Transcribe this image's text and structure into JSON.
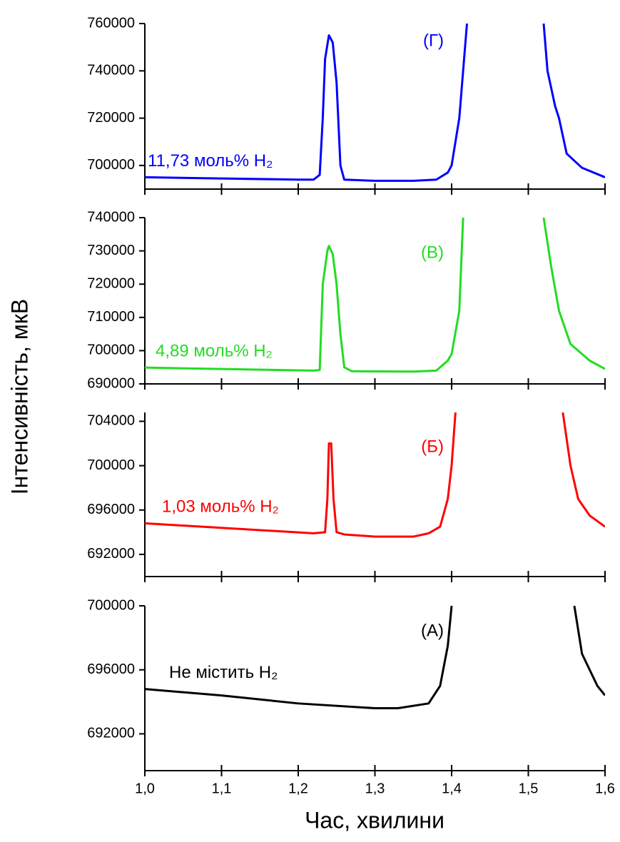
{
  "chart_data": [
    {
      "type": "line",
      "ylabel": "Інтенсивність, мкВ",
      "annotation": "(Г)",
      "x": [
        1.0,
        1.1,
        1.2,
        1.22,
        1.228,
        1.232,
        1.235,
        1.24,
        1.245,
        1.25,
        1.255,
        1.26,
        1.3,
        1.35,
        1.38,
        1.395,
        1.4,
        1.41,
        1.415,
        1.42,
        1.47,
        1.52,
        1.525,
        1.535,
        1.54,
        1.55,
        1.57,
        1.6
      ],
      "series": [
        {
          "name": "11,73 моль% H₂",
          "color": "#0000ff",
          "values": [
            695000,
            694500,
            694000,
            694000,
            696000,
            720000,
            745000,
            755000,
            752000,
            735000,
            700000,
            694000,
            693500,
            693500,
            694000,
            697000,
            700000,
            720000,
            740000,
            760000,
            null,
            760000,
            740000,
            725000,
            720000,
            705000,
            699000,
            695000
          ]
        }
      ],
      "xlim": [
        1.0,
        1.6
      ],
      "ylim": [
        690000,
        760000
      ],
      "yticks": [
        700000,
        720000,
        740000,
        760000
      ]
    },
    {
      "type": "line",
      "annotation": "(В)",
      "x": [
        1.0,
        1.22,
        1.228,
        1.232,
        1.238,
        1.24,
        1.245,
        1.25,
        1.255,
        1.26,
        1.27,
        1.35,
        1.38,
        1.395,
        1.4,
        1.41,
        1.415,
        1.47,
        1.52,
        1.53,
        1.54,
        1.555,
        1.58,
        1.6
      ],
      "series": [
        {
          "name": "4,89 моль% H₂",
          "color": "#22dd22",
          "values": [
            694900,
            694000,
            694200,
            720000,
            730000,
            731500,
            729000,
            720000,
            705000,
            695000,
            693800,
            693700,
            694000,
            697000,
            699000,
            712000,
            740000,
            null,
            740000,
            725000,
            712000,
            702000,
            697000,
            694500
          ]
        }
      ],
      "xlim": [
        1.0,
        1.6
      ],
      "ylim": [
        690000,
        740000
      ],
      "yticks": [
        690000,
        700000,
        710000,
        720000,
        730000,
        740000
      ]
    },
    {
      "type": "line",
      "annotation": "(Б)",
      "x": [
        1.0,
        1.22,
        1.235,
        1.238,
        1.24,
        1.243,
        1.246,
        1.25,
        1.26,
        1.3,
        1.35,
        1.37,
        1.385,
        1.395,
        1.4,
        1.405,
        1.47,
        1.545,
        1.555,
        1.565,
        1.58,
        1.6
      ],
      "series": [
        {
          "name": "1,03 моль% H₂",
          "color": "#ff0000",
          "values": [
            694800,
            693900,
            694000,
            697000,
            702000,
            702000,
            697000,
            694000,
            693800,
            693600,
            693600,
            693900,
            694500,
            697000,
            700000,
            704800,
            null,
            704800,
            700000,
            697000,
            695500,
            694500
          ]
        }
      ],
      "xlim": [
        1.0,
        1.6
      ],
      "ylim": [
        690000,
        704800
      ],
      "yticks": [
        692000,
        696000,
        700000,
        704000
      ]
    },
    {
      "type": "line",
      "annotation": "(А)",
      "xlabel": "Час, хвилини",
      "x": [
        1.0,
        1.1,
        1.2,
        1.3,
        1.33,
        1.37,
        1.385,
        1.395,
        1.4,
        1.48,
        1.56,
        1.57,
        1.59,
        1.6
      ],
      "series": [
        {
          "name": "Не містить H₂",
          "color": "#000000",
          "values": [
            694800,
            694400,
            693900,
            693600,
            693600,
            693900,
            695000,
            697500,
            700000,
            null,
            700000,
            697000,
            695000,
            694400
          ]
        }
      ],
      "xlim": [
        1.0,
        1.6
      ],
      "ylim": [
        689700,
        700000
      ],
      "yticks": [
        692000,
        696000,
        700000
      ],
      "xticks": [
        {
          "value": 1.0,
          "label": "1,0"
        },
        {
          "value": 1.1,
          "label": "1,1"
        },
        {
          "value": 1.2,
          "label": "1,2"
        },
        {
          "value": 1.3,
          "label": "1,3"
        },
        {
          "value": 1.4,
          "label": "1,4"
        },
        {
          "value": 1.5,
          "label": "1,5"
        },
        {
          "value": 1.6,
          "label": "1,6"
        }
      ]
    }
  ]
}
